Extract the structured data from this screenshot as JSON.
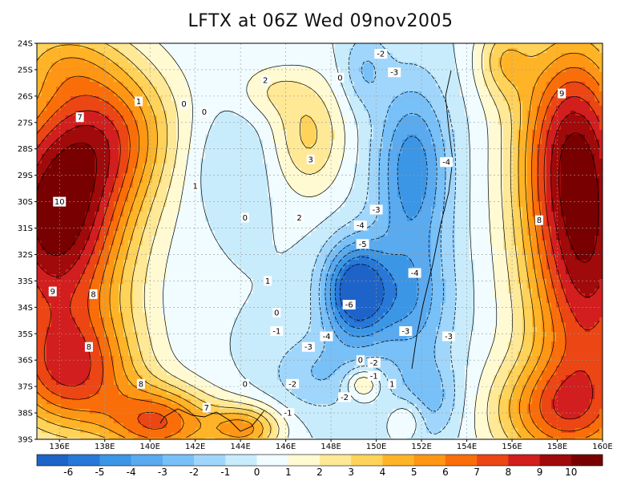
{
  "title": "LFTX at 06Z Wed 09nov2005",
  "chart_data": {
    "type": "heatmap",
    "variable": "LFTX",
    "lon_range": [
      135,
      160
    ],
    "lat_range": [
      -39,
      -24
    ],
    "lat_ticks": [
      "24S",
      "25S",
      "26S",
      "27S",
      "28S",
      "29S",
      "30S",
      "31S",
      "32S",
      "33S",
      "34S",
      "35S",
      "36S",
      "37S",
      "38S",
      "39S"
    ],
    "lon_ticks": [
      "136E",
      "138E",
      "140E",
      "142E",
      "144E",
      "146E",
      "148E",
      "150E",
      "152E",
      "154E",
      "156E",
      "158E",
      "160E"
    ],
    "colorbar": {
      "labels": [
        "-6",
        "-5",
        "-4",
        "-3",
        "-2",
        "-1",
        "0",
        "1",
        "2",
        "3",
        "4",
        "5",
        "6",
        "7",
        "8",
        "9",
        "10"
      ],
      "colors": [
        "#1e64c8",
        "#2878d8",
        "#3c96e6",
        "#5aaaf0",
        "#78c0f8",
        "#a0d6fc",
        "#c8ecfc",
        "#f0fcff",
        "#fffad2",
        "#ffe896",
        "#ffd25a",
        "#ffb428",
        "#ff9614",
        "#fa6e0a",
        "#eb4614",
        "#d21e1e",
        "#a00a0a",
        "#780000"
      ]
    },
    "contour_labels": [
      {
        "text": "-2",
        "lon": 150.2,
        "lat": -24.4
      },
      {
        "text": "0",
        "lon": 148.4,
        "lat": -25.3
      },
      {
        "text": "-3",
        "lon": 150.8,
        "lat": -25.1
      },
      {
        "text": "2",
        "lon": 145.1,
        "lat": -25.4
      },
      {
        "text": "1",
        "lon": 139.5,
        "lat": -26.2
      },
      {
        "text": "0",
        "lon": 141.5,
        "lat": -26.3
      },
      {
        "text": "0",
        "lon": 142.4,
        "lat": -26.6
      },
      {
        "text": "7",
        "lon": 136.9,
        "lat": -26.8
      },
      {
        "text": "9",
        "lon": 158.2,
        "lat": -25.9
      },
      {
        "text": "3",
        "lon": 147.1,
        "lat": -28.4
      },
      {
        "text": "-4",
        "lon": 153.1,
        "lat": -28.5
      },
      {
        "text": "1",
        "lon": 142.0,
        "lat": -29.4
      },
      {
        "text": "10",
        "lon": 136.0,
        "lat": -30.0
      },
      {
        "text": "0",
        "lon": 144.2,
        "lat": -30.6
      },
      {
        "text": "2",
        "lon": 146.6,
        "lat": -30.6
      },
      {
        "text": "-3",
        "lon": 150.0,
        "lat": -30.3
      },
      {
        "text": "8",
        "lon": 157.2,
        "lat": -30.7
      },
      {
        "text": "-4",
        "lon": 149.3,
        "lat": -30.9
      },
      {
        "text": "-5",
        "lon": 149.4,
        "lat": -31.6
      },
      {
        "text": "-4",
        "lon": 151.7,
        "lat": -32.7
      },
      {
        "text": "1",
        "lon": 145.2,
        "lat": -33.0
      },
      {
        "text": "9",
        "lon": 135.7,
        "lat": -33.4
      },
      {
        "text": "8",
        "lon": 137.5,
        "lat": -33.5
      },
      {
        "text": "-6",
        "lon": 148.8,
        "lat": -33.9
      },
      {
        "text": "0",
        "lon": 145.6,
        "lat": -34.2
      },
      {
        "text": "-1",
        "lon": 145.6,
        "lat": -34.9
      },
      {
        "text": "-3",
        "lon": 151.3,
        "lat": -34.9
      },
      {
        "text": "-4",
        "lon": 147.8,
        "lat": -35.1
      },
      {
        "text": "-3",
        "lon": 153.2,
        "lat": -35.1
      },
      {
        "text": "8",
        "lon": 137.3,
        "lat": -35.5
      },
      {
        "text": "-3",
        "lon": 147.0,
        "lat": -35.5
      },
      {
        "text": "0",
        "lon": 149.3,
        "lat": -36.0
      },
      {
        "text": "-2",
        "lon": 149.9,
        "lat": -36.1
      },
      {
        "text": "-1",
        "lon": 149.9,
        "lat": -36.6
      },
      {
        "text": "8",
        "lon": 139.6,
        "lat": -36.9
      },
      {
        "text": "0",
        "lon": 144.2,
        "lat": -36.9
      },
      {
        "text": "-2",
        "lon": 146.3,
        "lat": -36.9
      },
      {
        "text": "1",
        "lon": 150.7,
        "lat": -36.9
      },
      {
        "text": "-2",
        "lon": 148.6,
        "lat": -37.4
      },
      {
        "text": "7",
        "lon": 142.5,
        "lat": -37.8
      },
      {
        "text": "-1",
        "lon": 146.1,
        "lat": -38.0
      }
    ]
  }
}
